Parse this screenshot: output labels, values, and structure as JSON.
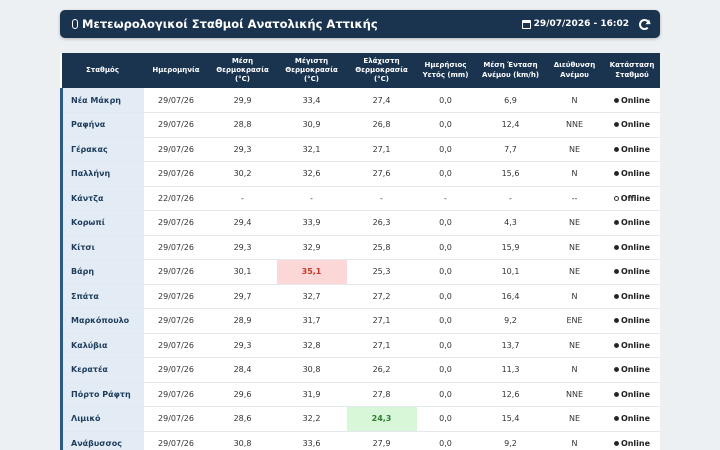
{
  "header": {
    "title": "Μετεωρολογικοί Σταθμοί Ανατολικής Αττικής",
    "datetime": "29/07/2026 - 16:02"
  },
  "columns": [
    "Σταθμός",
    "Ημερομηνία",
    "Μέση Θερμοκρασία (°C)",
    "Μέγιστη Θερμοκρασία (°C)",
    "Ελάχιστη Θερμοκρασία (°C)",
    "Ημερήσιος Υετός (mm)",
    "Μέση Ένταση Ανέμου (km/h)",
    "Διεύθυνση Ανέμου",
    "Κατάσταση Σταθμού"
  ],
  "rows": [
    {
      "station": "Νέα Μάκρη",
      "date": "29/07/26",
      "avg": "29,9",
      "max": "33,4",
      "min": "27,4",
      "rain": "0,0",
      "wind": "6,9",
      "dir": "N",
      "status": "Online"
    },
    {
      "station": "Ραφήνα",
      "date": "29/07/26",
      "avg": "28,8",
      "max": "30,9",
      "min": "26,8",
      "rain": "0,0",
      "wind": "12,4",
      "dir": "NNE",
      "status": "Online"
    },
    {
      "station": "Γέρακας",
      "date": "29/07/26",
      "avg": "29,3",
      "max": "32,1",
      "min": "27,1",
      "rain": "0,0",
      "wind": "7,7",
      "dir": "NE",
      "status": "Online"
    },
    {
      "station": "Παλλήνη",
      "date": "29/07/26",
      "avg": "30,2",
      "max": "32,6",
      "min": "27,6",
      "rain": "0,0",
      "wind": "15,6",
      "dir": "N",
      "status": "Online"
    },
    {
      "station": "Κάντζα",
      "date": "22/07/26",
      "avg": "-",
      "max": "-",
      "min": "-",
      "rain": "-",
      "wind": "-",
      "dir": "--",
      "status": "Offline"
    },
    {
      "station": "Κορωπί",
      "date": "29/07/26",
      "avg": "29,4",
      "max": "33,9",
      "min": "26,3",
      "rain": "0,0",
      "wind": "4,3",
      "dir": "NE",
      "status": "Online"
    },
    {
      "station": "Κίτσι",
      "date": "29/07/26",
      "avg": "29,3",
      "max": "32,9",
      "min": "25,8",
      "rain": "0,0",
      "wind": "15,9",
      "dir": "NE",
      "status": "Online"
    },
    {
      "station": "Βάρη",
      "date": "29/07/26",
      "avg": "30,1",
      "max": "35,1",
      "min": "25,3",
      "rain": "0,0",
      "wind": "10,1",
      "dir": "NE",
      "status": "Online"
    },
    {
      "station": "Σπάτα",
      "date": "29/07/26",
      "avg": "29,7",
      "max": "32,7",
      "min": "27,2",
      "rain": "0,0",
      "wind": "16,4",
      "dir": "N",
      "status": "Online"
    },
    {
      "station": "Μαρκόπουλο",
      "date": "29/07/26",
      "avg": "28,9",
      "max": "31,7",
      "min": "27,1",
      "rain": "0,0",
      "wind": "9,2",
      "dir": "ENE",
      "status": "Online"
    },
    {
      "station": "Καλύβια",
      "date": "29/07/26",
      "avg": "29,3",
      "max": "32,8",
      "min": "27,1",
      "rain": "0,0",
      "wind": "13,7",
      "dir": "NE",
      "status": "Online"
    },
    {
      "station": "Κερατέα",
      "date": "29/07/26",
      "avg": "28,4",
      "max": "30,8",
      "min": "26,2",
      "rain": "0,0",
      "wind": "11,3",
      "dir": "N",
      "status": "Online"
    },
    {
      "station": "Πόρτο Ράφτη",
      "date": "29/07/26",
      "avg": "29,6",
      "max": "31,9",
      "min": "27,8",
      "rain": "0,0",
      "wind": "12,6",
      "dir": "NNE",
      "status": "Online"
    },
    {
      "station": "Λιμικό",
      "date": "29/07/26",
      "avg": "28,6",
      "max": "32,2",
      "min": "24,3",
      "rain": "0,0",
      "wind": "15,4",
      "dir": "NE",
      "status": "Online"
    },
    {
      "station": "Ανάβυσσος",
      "date": "29/07/26",
      "avg": "30,8",
      "max": "33,6",
      "min": "27,9",
      "rain": "0,0",
      "wind": "9,2",
      "dir": "N",
      "status": "Online"
    }
  ],
  "highlights": {
    "max_station": "Βάρη",
    "min_station": "Λιμικό",
    "max_color": "#fcd7d7",
    "min_color": "#d8f6d8"
  },
  "icons": {
    "title_icon": "thermometer-icon",
    "datetime_icon": "calendar-icon",
    "refresh_icon": "refresh-icon",
    "status_icon": "status-dot-icon"
  }
}
